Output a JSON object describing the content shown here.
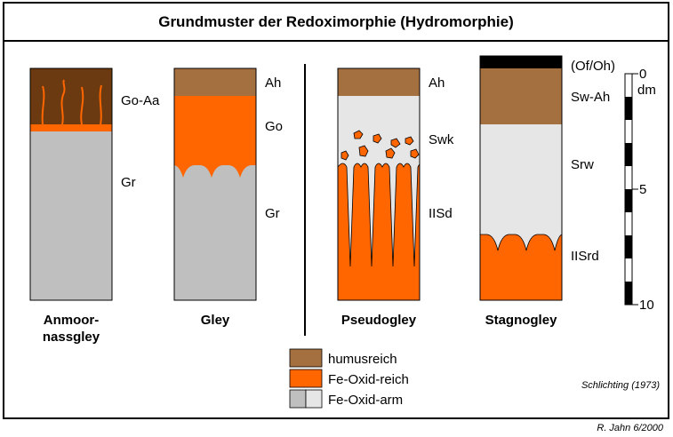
{
  "title": "Grundmuster der Redoximorphie (Hydromorphie)",
  "colors": {
    "humus": "#a5703f",
    "humus_dark": "#6b3a10",
    "fe_rich": "#ff6600",
    "fe_poor_gray": "#bfbfbf",
    "fe_poor_light": "#e6e6e6",
    "black": "#000000"
  },
  "profiles": [
    {
      "name_line1": "Anmoor-",
      "name_line2": "nassgley",
      "horizons": [
        "Go-Aa",
        "Gr"
      ]
    },
    {
      "name_line1": "Gley",
      "horizons": [
        "Ah",
        "Go",
        "Gr"
      ]
    },
    {
      "name_line1": "Pseudogley",
      "horizons": [
        "Ah",
        "Swk",
        "IISd"
      ]
    },
    {
      "name_line1": "Stagnogley",
      "horizons": [
        "(Of/Oh)",
        "Sw-Ah",
        "Srw",
        "IISrd"
      ]
    }
  ],
  "scale": {
    "unit": "dm",
    "ticks": [
      "0",
      "5",
      "10"
    ]
  },
  "legend": [
    {
      "label": "humusreich",
      "color_key": "humus"
    },
    {
      "label": "Fe-Oxid-reich",
      "color_key": "fe_rich"
    },
    {
      "label": "Fe-Oxid-arm",
      "color_key": "fe_poor_gray"
    }
  ],
  "source": "Schlichting (1973)",
  "author": "R. Jahn 6/2000"
}
